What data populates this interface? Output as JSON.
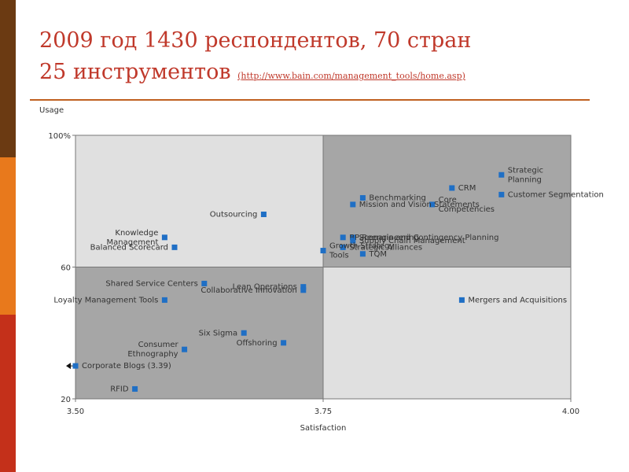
{
  "title": {
    "line1": "2009 год 1430 респондентов, 70 стран",
    "line2": "25 инструментов",
    "link_text": "(http://www.bain.com/management_tools/home.asp)"
  },
  "colors": {
    "accent": "#c0392b",
    "rule": "#c06020",
    "quad_dark": "#a6a6a6",
    "quad_light": "#e0e0e0",
    "marker": "#1f6fc5"
  },
  "chart_data": {
    "type": "scatter",
    "xlabel": "Satisfaction",
    "ylabel": "Usage",
    "xlim": [
      3.5,
      4.0
    ],
    "ylim": [
      20,
      100
    ],
    "x_ticks": [
      "3.50",
      "3.75",
      "4.00"
    ],
    "y_ticks": [
      "100%",
      "60",
      "20"
    ],
    "quadrant_split": {
      "x": 3.75,
      "y": 60
    },
    "grid": false,
    "points": [
      {
        "label": "Strategic\nPlanning",
        "x": 3.93,
        "y": 88
      },
      {
        "label": "Customer Segmentation",
        "x": 3.93,
        "y": 82
      },
      {
        "label": "CRM",
        "x": 3.88,
        "y": 84
      },
      {
        "label": "Core\nCompetencies",
        "x": 3.86,
        "y": 79
      },
      {
        "label": "Mission and Vision Statements",
        "x": 3.78,
        "y": 79
      },
      {
        "label": "Benchmarking",
        "x": 3.79,
        "y": 81
      },
      {
        "label": "Scenario and Contingency Planning",
        "x": 3.78,
        "y": 69
      },
      {
        "label": "BP Reengineering",
        "x": 3.77,
        "y": 69
      },
      {
        "label": "Supply Chain Management",
        "x": 3.78,
        "y": 68
      },
      {
        "label": "TQM",
        "x": 3.79,
        "y": 64
      },
      {
        "label": "Strategic Alliances",
        "x": 3.77,
        "y": 66
      },
      {
        "label": "Growth Strategy\nTools",
        "x": 3.75,
        "y": 65
      },
      {
        "label": "Outsourcing",
        "x": 3.69,
        "y": 76
      },
      {
        "label": "Knowledge\nManagement",
        "x": 3.59,
        "y": 69
      },
      {
        "label": "Balanced Scorecard",
        "x": 3.6,
        "y": 66
      },
      {
        "label": "Shared Service Centers",
        "x": 3.63,
        "y": 55
      },
      {
        "label": "Lean Operations",
        "x": 3.73,
        "y": 54
      },
      {
        "label": "Collaborative Innovation",
        "x": 3.73,
        "y": 53
      },
      {
        "label": "Loyalty Management Tools",
        "x": 3.59,
        "y": 50
      },
      {
        "label": "Mergers and Acquisitions",
        "x": 3.89,
        "y": 50
      },
      {
        "label": "Six Sigma",
        "x": 3.67,
        "y": 40
      },
      {
        "label": "Consumer\nEthnography",
        "x": 3.61,
        "y": 35
      },
      {
        "label": "Offshoring",
        "x": 3.71,
        "y": 37
      },
      {
        "label": "Corporate Blogs (3.39)",
        "x": 3.5,
        "y": 30,
        "off_scale": true
      },
      {
        "label": "RFID",
        "x": 3.56,
        "y": 23
      }
    ]
  }
}
